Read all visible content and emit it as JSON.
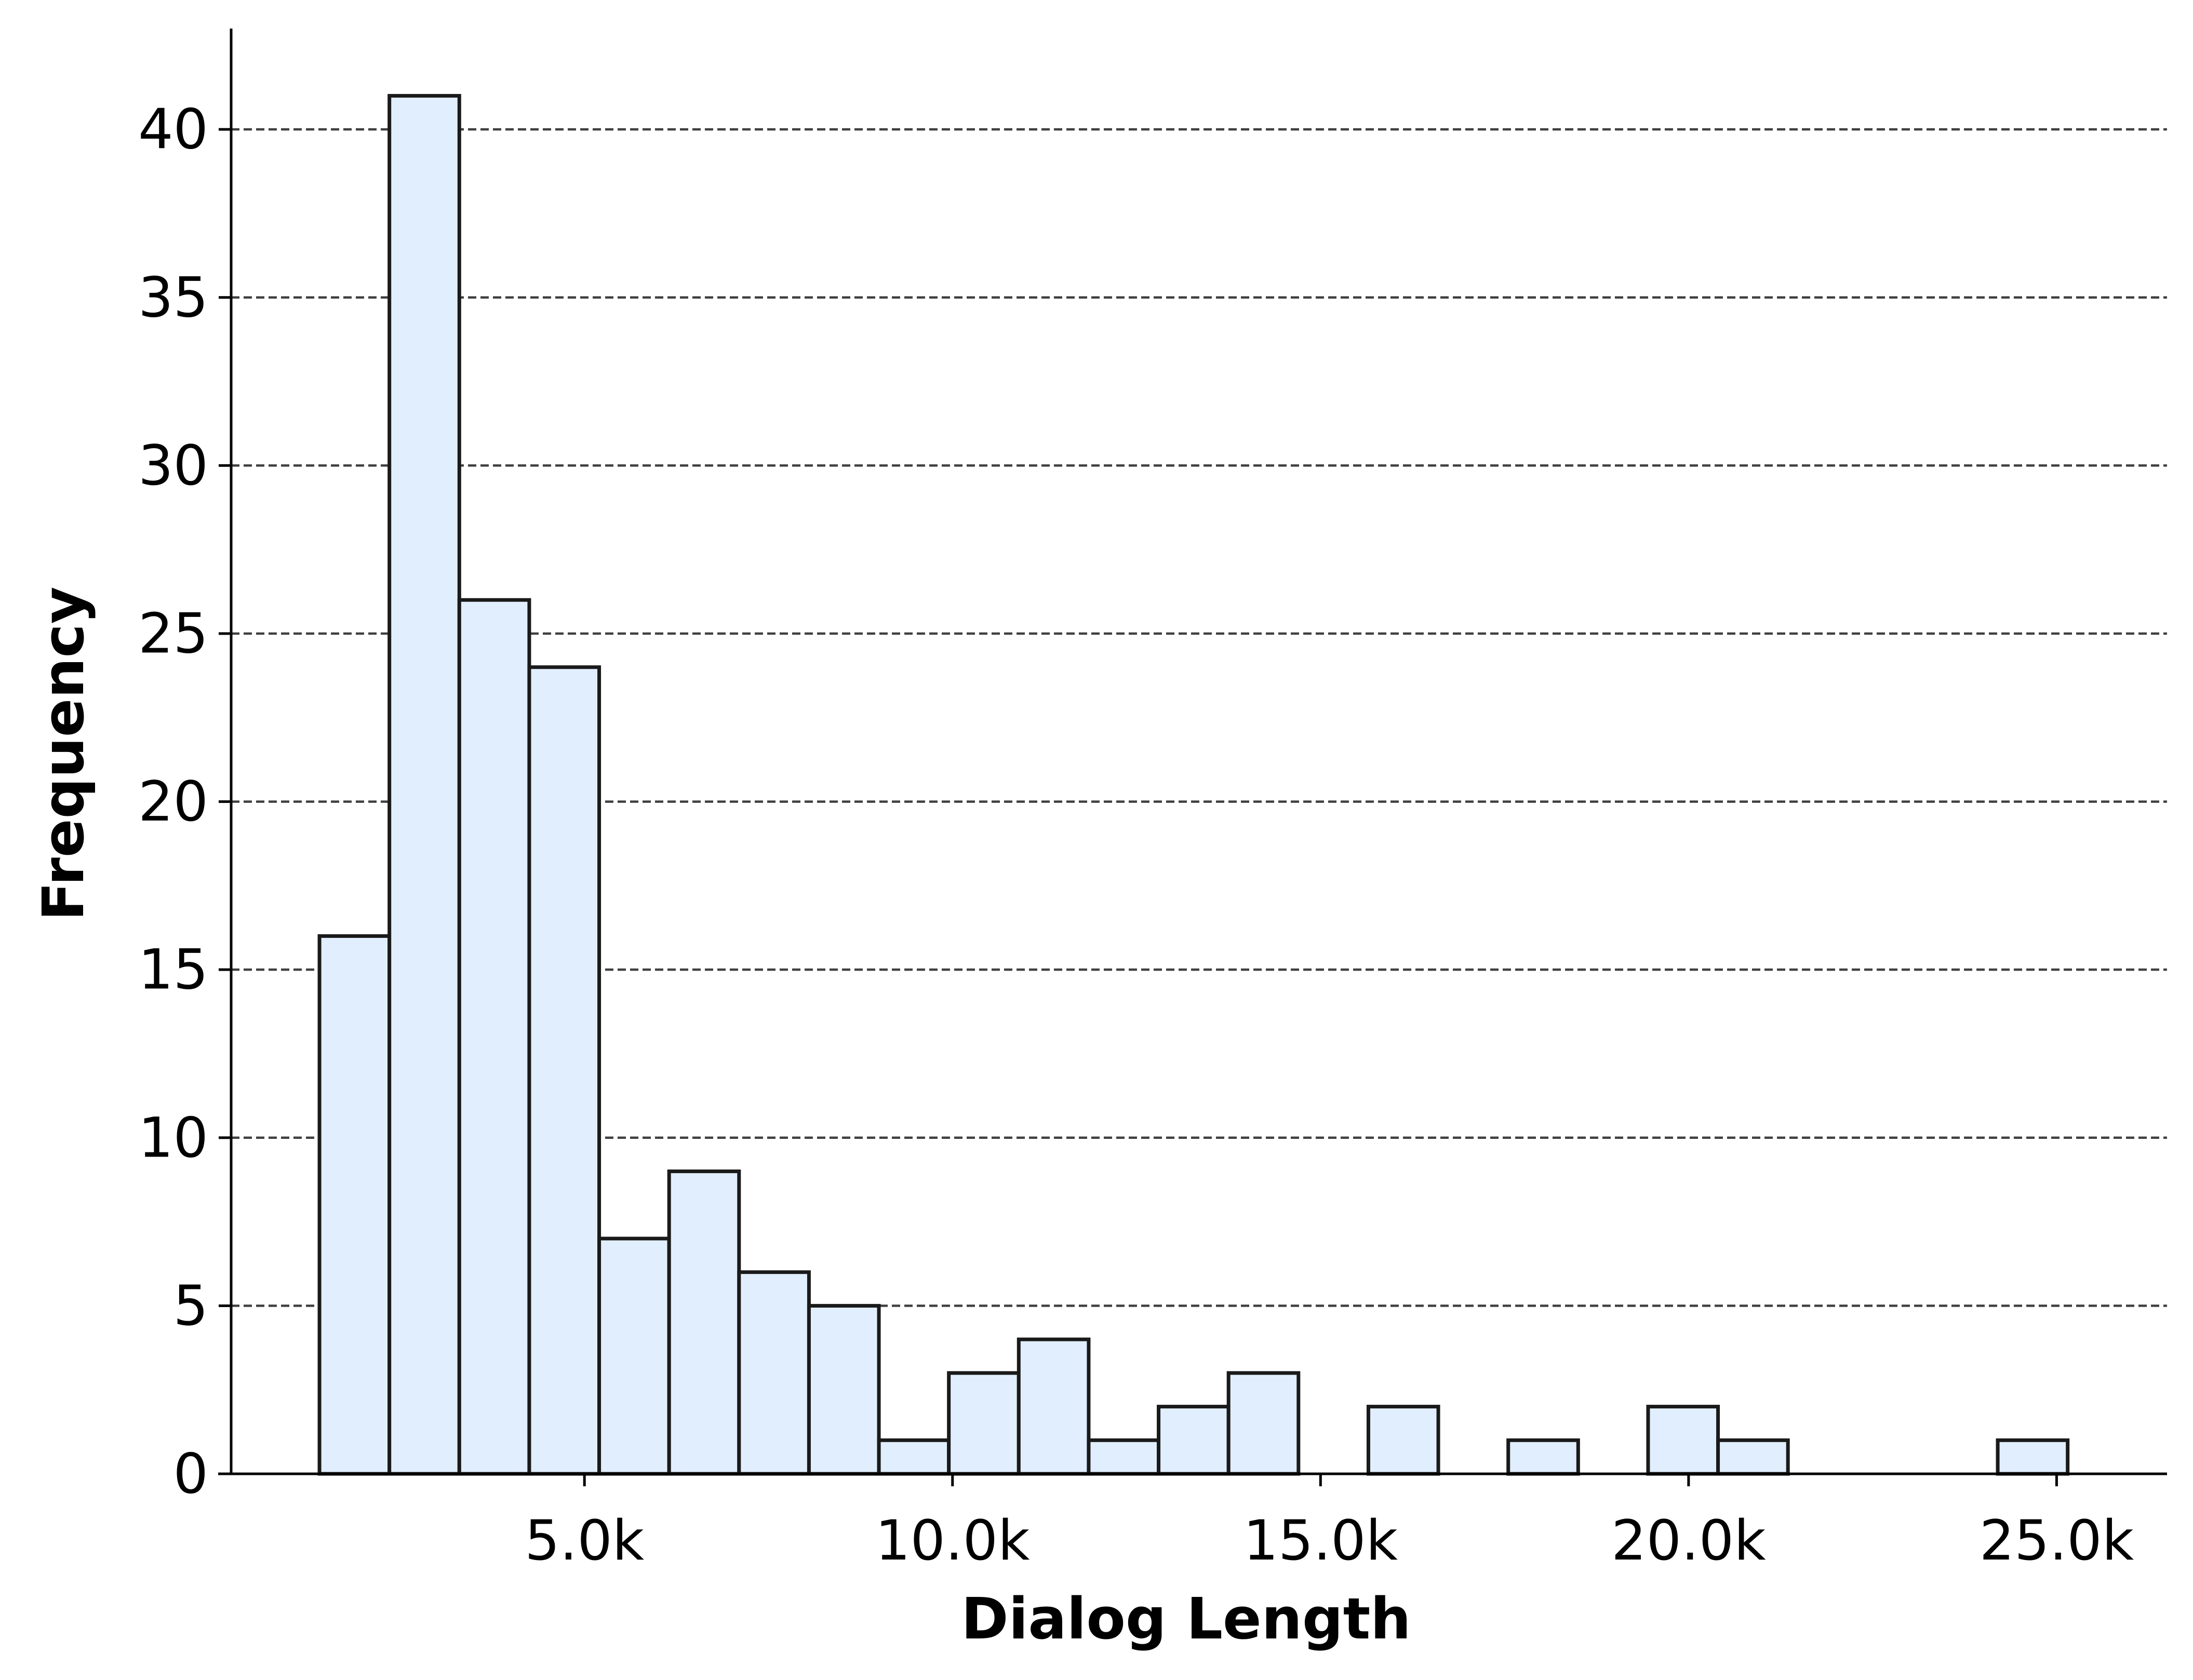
{
  "chart_data": {
    "type": "bar",
    "title": "",
    "xlabel": "Dialog Length",
    "ylabel": "Frequency",
    "x_unit_note": "",
    "x_ticks": [
      {
        "value": 5000,
        "label": "5.0k"
      },
      {
        "value": 10000,
        "label": "10.0k"
      },
      {
        "value": 15000,
        "label": "15.0k"
      },
      {
        "value": 20000,
        "label": "20.0k"
      },
      {
        "value": 25000,
        "label": "25.0k"
      }
    ],
    "y_ticks": [
      0,
      5,
      10,
      15,
      20,
      25,
      30,
      35,
      40
    ],
    "xlim": [
      200,
      26500
    ],
    "ylim": [
      0,
      43
    ],
    "grid": "y-dashed",
    "legend": "none",
    "bar_color": "#e1eefd",
    "bar_edge_color": "#1a1a1a",
    "grid_color": "#404040",
    "bins": [
      {
        "x0": 1400,
        "x1": 2350,
        "count": 16
      },
      {
        "x0": 2350,
        "x1": 3300,
        "count": 41
      },
      {
        "x0": 3300,
        "x1": 4250,
        "count": 26
      },
      {
        "x0": 4250,
        "x1": 5200,
        "count": 24
      },
      {
        "x0": 5200,
        "x1": 6150,
        "count": 7
      },
      {
        "x0": 6150,
        "x1": 7100,
        "count": 9
      },
      {
        "x0": 7100,
        "x1": 8050,
        "count": 6
      },
      {
        "x0": 8050,
        "x1": 9000,
        "count": 5
      },
      {
        "x0": 9000,
        "x1": 9950,
        "count": 1
      },
      {
        "x0": 9950,
        "x1": 10900,
        "count": 3
      },
      {
        "x0": 10900,
        "x1": 11850,
        "count": 4
      },
      {
        "x0": 11850,
        "x1": 12800,
        "count": 1
      },
      {
        "x0": 12800,
        "x1": 13750,
        "count": 2
      },
      {
        "x0": 13750,
        "x1": 14700,
        "count": 3
      },
      {
        "x0": 14700,
        "x1": 15650,
        "count": 0
      },
      {
        "x0": 15650,
        "x1": 16600,
        "count": 2
      },
      {
        "x0": 16600,
        "x1": 17550,
        "count": 0
      },
      {
        "x0": 17550,
        "x1": 18500,
        "count": 1
      },
      {
        "x0": 18500,
        "x1": 19450,
        "count": 0
      },
      {
        "x0": 19450,
        "x1": 20400,
        "count": 2
      },
      {
        "x0": 20400,
        "x1": 21350,
        "count": 1
      },
      {
        "x0": 21350,
        "x1": 22300,
        "count": 0
      },
      {
        "x0": 22300,
        "x1": 23250,
        "count": 0
      },
      {
        "x0": 23250,
        "x1": 24200,
        "count": 0
      },
      {
        "x0": 24200,
        "x1": 25150,
        "count": 1
      }
    ]
  }
}
